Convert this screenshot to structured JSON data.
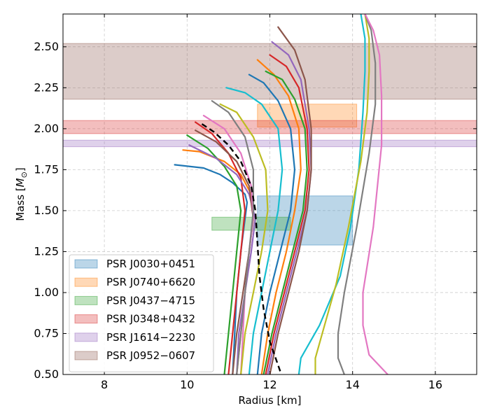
{
  "chart_data": {
    "type": "line",
    "xlabel": "Radius [km]",
    "ylabel_main": "Mass [",
    "ylabel_sub": "⊙",
    "ylabel_symbol": "M",
    "ylabel_end": "]",
    "xlim": [
      7,
      17
    ],
    "ylim": [
      0.5,
      2.7
    ],
    "xticks": [
      8,
      10,
      12,
      14,
      16
    ],
    "yticks": [
      0.5,
      0.75,
      1.0,
      1.25,
      1.5,
      1.75,
      2.0,
      2.25,
      2.5
    ],
    "ytick_labels": [
      "0.50",
      "0.75",
      "1.00",
      "1.25",
      "1.50",
      "1.75",
      "2.00",
      "2.25",
      "2.50"
    ],
    "grid": true,
    "legend_position": "lower-left",
    "bands": [
      {
        "name": "PSR J0030+0451",
        "color": "#1f77b4",
        "x": [
          11.7,
          14.0
        ],
        "y": [
          1.29,
          1.59
        ]
      },
      {
        "name": "PSR J0740+6620",
        "color": "#ff7f0e",
        "x": [
          11.7,
          14.1
        ],
        "y": [
          2.01,
          2.15
        ]
      },
      {
        "name": "PSR J0437−4715",
        "color": "#2ca02c",
        "x": [
          10.6,
          12.5
        ],
        "y": [
          1.38,
          1.46
        ]
      },
      {
        "name": "PSR J0348+0432",
        "color": "#d62728",
        "x": [
          7.0,
          17.0
        ],
        "y": [
          1.97,
          2.05
        ]
      },
      {
        "name": "PSR J1614−2230",
        "color": "#9467bd",
        "x": [
          7.0,
          17.0
        ],
        "y": [
          1.89,
          1.93
        ]
      },
      {
        "name": "PSR J0952−0607",
        "color": "#8c564b",
        "x": [
          7.0,
          17.0
        ],
        "y": [
          2.18,
          2.52
        ]
      }
    ],
    "series": [
      {
        "name": "blue",
        "color": "#1f77b4",
        "x": [
          11.1,
          11.15,
          11.2,
          11.3,
          11.4,
          11.45,
          11.4,
          11.1,
          10.8,
          10.4,
          9.7
        ],
        "y": [
          0.5,
          0.75,
          1.0,
          1.25,
          1.45,
          1.55,
          1.6,
          1.67,
          1.72,
          1.76,
          1.78
        ]
      },
      {
        "name": "orange",
        "color": "#ff7f0e",
        "x": [
          11.2,
          11.3,
          11.4,
          11.5,
          11.6,
          11.55,
          11.3,
          10.9,
          10.3,
          9.9
        ],
        "y": [
          0.5,
          0.75,
          1.0,
          1.25,
          1.45,
          1.6,
          1.72,
          1.8,
          1.86,
          1.87
        ]
      },
      {
        "name": "green",
        "color": "#2ca02c",
        "x": [
          10.9,
          11.0,
          11.1,
          11.2,
          11.3,
          11.2,
          10.9,
          10.5,
          10.0
        ],
        "y": [
          0.5,
          0.75,
          1.0,
          1.25,
          1.5,
          1.65,
          1.77,
          1.88,
          1.96
        ]
      },
      {
        "name": "red",
        "color": "#d62728",
        "x": [
          11.0,
          11.1,
          11.2,
          11.3,
          11.4,
          11.3,
          11.0,
          10.6,
          10.2
        ],
        "y": [
          0.5,
          0.75,
          1.0,
          1.25,
          1.5,
          1.7,
          1.85,
          1.97,
          2.04
        ]
      },
      {
        "name": "purple",
        "color": "#9467bd",
        "x": [
          11.2,
          11.25,
          11.4,
          11.55,
          11.65,
          11.5,
          11.2,
          10.7,
          10.05
        ],
        "y": [
          0.5,
          0.75,
          1.0,
          1.25,
          1.45,
          1.6,
          1.72,
          1.82,
          1.9
        ]
      },
      {
        "name": "brown",
        "color": "#8c564b",
        "x": [
          11.1,
          11.2,
          11.35,
          11.5,
          11.6,
          11.5,
          11.2,
          10.7,
          10.2
        ],
        "y": [
          0.5,
          0.75,
          1.0,
          1.25,
          1.45,
          1.65,
          1.8,
          1.92,
          1.99
        ]
      },
      {
        "name": "pink",
        "color": "#e377c2",
        "x": [
          11.3,
          11.35,
          11.4,
          11.5,
          11.6,
          11.55,
          11.3,
          10.9,
          10.4
        ],
        "y": [
          0.5,
          0.75,
          1.0,
          1.25,
          1.45,
          1.65,
          1.85,
          2.0,
          2.08
        ]
      },
      {
        "name": "gray",
        "color": "#7f7f7f",
        "x": [
          11.2,
          11.3,
          11.4,
          11.5,
          11.6,
          11.6,
          11.4,
          11.0,
          10.6
        ],
        "y": [
          0.5,
          0.75,
          1.0,
          1.25,
          1.5,
          1.75,
          1.95,
          2.1,
          2.17
        ]
      },
      {
        "name": "olive",
        "color": "#bcbd22",
        "x": [
          11.3,
          11.4,
          11.6,
          11.8,
          11.95,
          11.9,
          11.6,
          11.2,
          10.8
        ],
        "y": [
          0.5,
          0.75,
          1.0,
          1.25,
          1.5,
          1.75,
          1.95,
          2.1,
          2.15
        ]
      },
      {
        "name": "cyan",
        "color": "#17becf",
        "x": [
          11.5,
          11.6,
          11.8,
          12.0,
          12.2,
          12.3,
          12.2,
          11.8,
          11.4,
          10.95
        ],
        "y": [
          0.5,
          0.75,
          1.0,
          1.25,
          1.5,
          1.75,
          2.0,
          2.15,
          2.22,
          2.25
        ]
      },
      {
        "name": "blue-2",
        "color": "#1f77b4",
        "x": [
          11.7,
          11.8,
          12.0,
          12.25,
          12.5,
          12.6,
          12.5,
          12.2,
          11.85,
          11.5
        ],
        "y": [
          0.5,
          0.75,
          1.0,
          1.25,
          1.5,
          1.75,
          2.0,
          2.17,
          2.28,
          2.33
        ]
      },
      {
        "name": "orange-2",
        "color": "#ff7f0e",
        "x": [
          11.8,
          11.95,
          12.15,
          12.4,
          12.6,
          12.75,
          12.7,
          12.45,
          12.1,
          11.7
        ],
        "y": [
          0.5,
          0.75,
          1.0,
          1.25,
          1.5,
          1.75,
          2.0,
          2.2,
          2.33,
          2.42
        ]
      },
      {
        "name": "green-2",
        "color": "#2ca02c",
        "x": [
          11.85,
          12.05,
          12.3,
          12.55,
          12.8,
          12.9,
          12.85,
          12.6,
          12.3,
          11.9
        ],
        "y": [
          0.5,
          0.75,
          1.0,
          1.25,
          1.5,
          1.75,
          2.0,
          2.18,
          2.3,
          2.35
        ]
      },
      {
        "name": "red-2",
        "color": "#d62728",
        "x": [
          11.9,
          12.1,
          12.35,
          12.6,
          12.85,
          12.95,
          12.9,
          12.7,
          12.4,
          12.0
        ],
        "y": [
          0.5,
          0.75,
          1.0,
          1.25,
          1.5,
          1.75,
          2.0,
          2.25,
          2.38,
          2.45
        ]
      },
      {
        "name": "purple-2",
        "color": "#9467bd",
        "x": [
          11.95,
          12.15,
          12.4,
          12.65,
          12.9,
          13.0,
          12.95,
          12.75,
          12.45,
          12.05
        ],
        "y": [
          0.5,
          0.75,
          1.0,
          1.25,
          1.5,
          1.75,
          2.0,
          2.3,
          2.45,
          2.53
        ]
      },
      {
        "name": "brown-2",
        "color": "#8c564b",
        "x": [
          12.0,
          12.2,
          12.45,
          12.7,
          12.9,
          13.0,
          13.0,
          12.85,
          12.6,
          12.2
        ],
        "y": [
          0.5,
          0.75,
          1.0,
          1.25,
          1.5,
          1.75,
          2.0,
          2.3,
          2.48,
          2.62
        ]
      },
      {
        "name": "cyan-2",
        "color": "#17becf",
        "x": [
          12.7,
          12.75,
          13.2,
          13.7,
          13.95,
          14.15,
          14.25,
          14.3,
          14.3,
          14.2
        ],
        "y": [
          0.5,
          0.6,
          0.8,
          1.1,
          1.4,
          1.75,
          2.1,
          2.35,
          2.55,
          2.7
        ]
      },
      {
        "name": "olive-2",
        "color": "#bcbd22",
        "x": [
          13.1,
          13.1,
          13.3,
          13.6,
          13.9,
          14.2,
          14.35,
          14.4,
          14.4,
          14.3
        ],
        "y": [
          0.5,
          0.6,
          0.78,
          1.05,
          1.4,
          1.8,
          2.1,
          2.35,
          2.55,
          2.7
        ]
      },
      {
        "name": "gray-2",
        "color": "#7f7f7f",
        "x": [
          13.8,
          13.65,
          13.65,
          13.8,
          14.1,
          14.4,
          14.55,
          14.55,
          14.45,
          14.3
        ],
        "y": [
          0.5,
          0.6,
          0.75,
          1.0,
          1.4,
          1.85,
          2.15,
          2.4,
          2.6,
          2.7
        ]
      },
      {
        "name": "pink-2",
        "color": "#e377c2",
        "x": [
          14.85,
          14.4,
          14.25,
          14.25,
          14.5,
          14.7,
          14.7,
          14.65,
          14.5,
          14.3
        ],
        "y": [
          0.5,
          0.62,
          0.8,
          1.0,
          1.4,
          1.9,
          2.2,
          2.45,
          2.6,
          2.7
        ]
      },
      {
        "name": "black-dashed",
        "color": "#000000",
        "dashed": true,
        "x": [
          12.25,
          12.0,
          11.85,
          11.75,
          11.7,
          11.65,
          11.55,
          11.3,
          11.0,
          10.65,
          10.35
        ],
        "y": [
          0.52,
          0.7,
          0.9,
          1.1,
          1.3,
          1.5,
          1.65,
          1.8,
          1.9,
          1.98,
          2.03
        ]
      }
    ]
  }
}
